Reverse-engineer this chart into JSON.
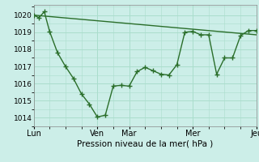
{
  "background_color": "#cceee8",
  "grid_color": "#aaddcc",
  "line_color": "#2a6e2a",
  "marker_color": "#2a6e2a",
  "xlabel": "Pression niveau de la mer( hPa )",
  "ylim": [
    1013.5,
    1020.6
  ],
  "yticks": [
    1014,
    1015,
    1016,
    1017,
    1018,
    1019,
    1020
  ],
  "xlim": [
    0,
    336
  ],
  "day_positions": [
    0,
    96,
    144,
    240,
    336
  ],
  "day_labels": [
    "Lun",
    "Ven",
    "Mar",
    "Mer",
    "Jeu"
  ],
  "series1_x": [
    0,
    8,
    16,
    24,
    36,
    48,
    60,
    72,
    84,
    96,
    108,
    120,
    132,
    144,
    156,
    168,
    180,
    192,
    204,
    216,
    228,
    240,
    252,
    264,
    276,
    288,
    300,
    312,
    324,
    336
  ],
  "series1_y": [
    1020.0,
    1019.85,
    1020.2,
    1019.05,
    1017.8,
    1017.0,
    1016.3,
    1015.4,
    1014.8,
    1014.05,
    1014.15,
    1015.85,
    1015.9,
    1015.85,
    1016.7,
    1016.95,
    1016.75,
    1016.55,
    1016.5,
    1017.1,
    1019.0,
    1019.05,
    1018.85,
    1018.85,
    1016.55,
    1017.5,
    1017.5,
    1018.8,
    1019.1,
    1019.1
  ],
  "series2_x": [
    0,
    336
  ],
  "series2_y": [
    1020.0,
    1018.85
  ]
}
